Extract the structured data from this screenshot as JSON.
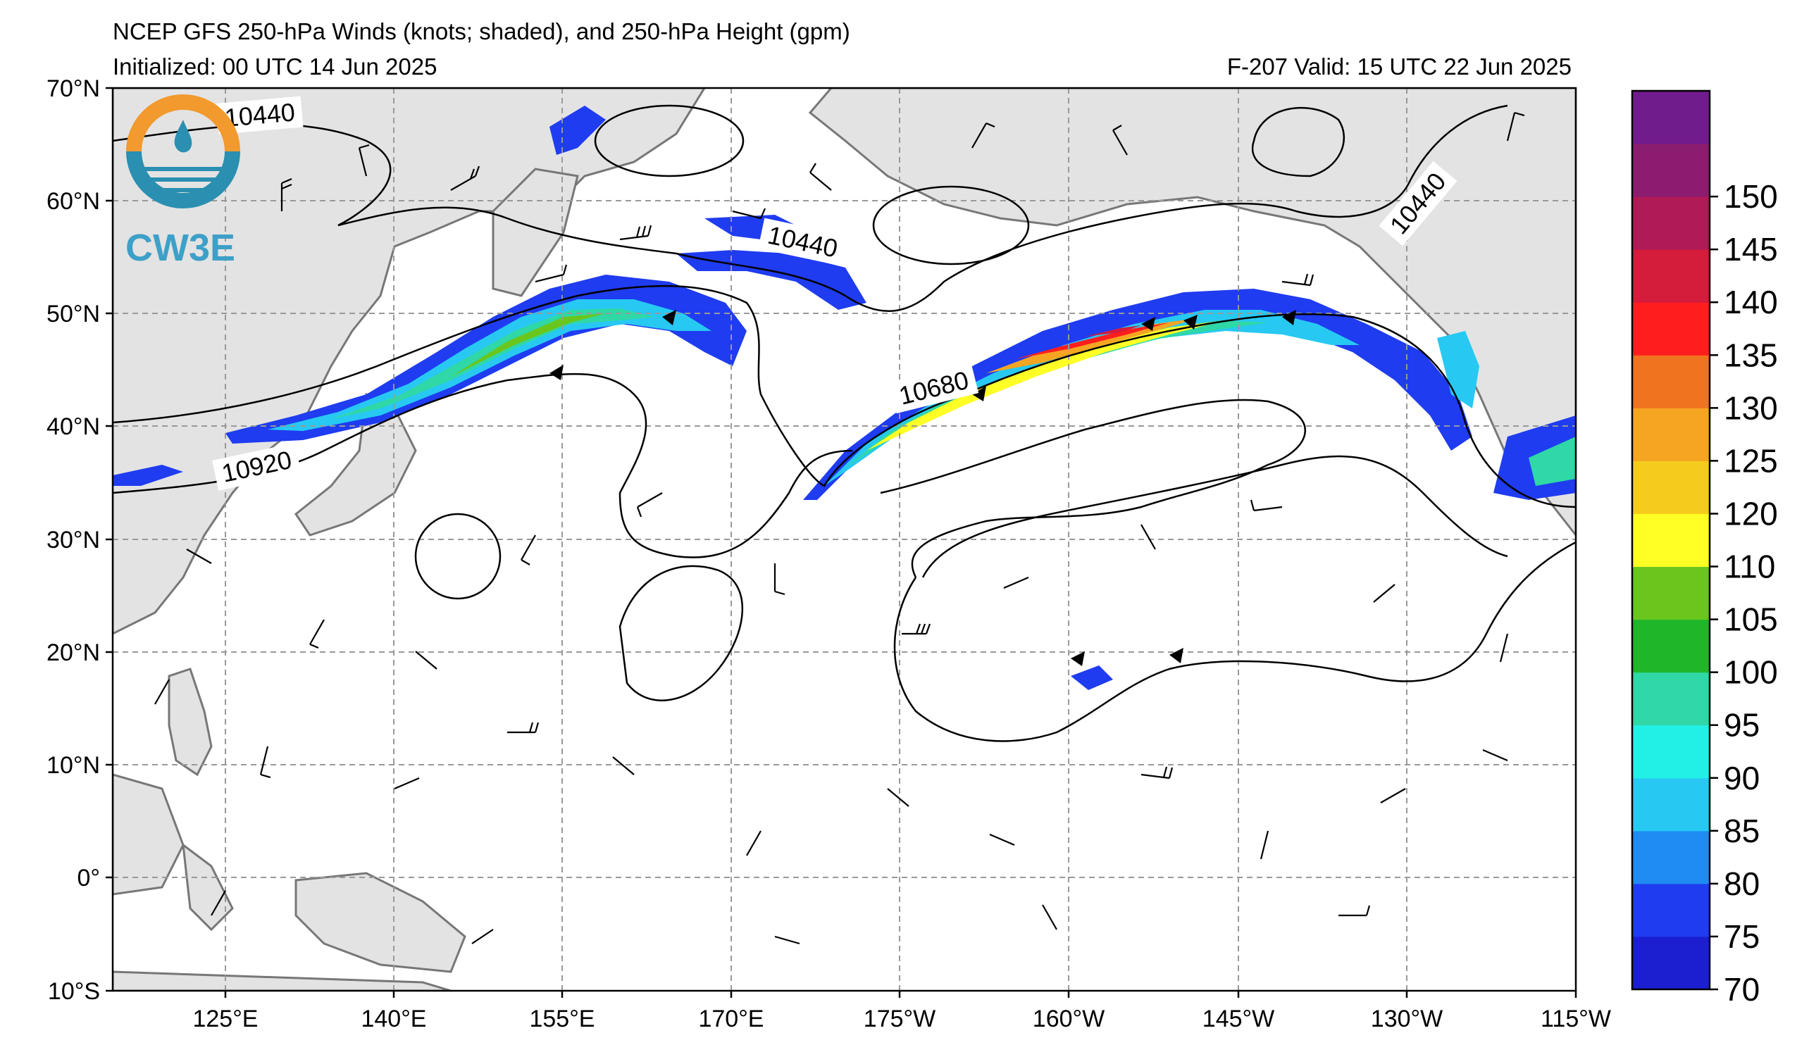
{
  "header": {
    "title": "NCEP GFS 250-hPa Winds (knots; shaded), and 250-hPa Height (gpm)",
    "initialized": "Initialized: 00 UTC 14 Jun 2025",
    "valid": "F-207  Valid: 15 UTC 22 Jun 2025"
  },
  "logo": {
    "text": "CW3E"
  },
  "map": {
    "lat_labels": [
      "70°N",
      "60°N",
      "50°N",
      "40°N",
      "30°N",
      "20°N",
      "10°N",
      "0°",
      "10°S"
    ],
    "lon_labels": [
      "125°E",
      "140°E",
      "155°E",
      "170°E",
      "175°W",
      "160°W",
      "145°W",
      "130°W",
      "115°W"
    ],
    "contour_labels": [
      "10440",
      "10440",
      "10440",
      "10680",
      "10920"
    ],
    "extent": {
      "lon_min": 115,
      "lon_max": 245,
      "lat_min": -10,
      "lat_max": 70
    }
  },
  "colorbar": {
    "labels": [
      "70",
      "75",
      "80",
      "85",
      "90",
      "95",
      "100",
      "105",
      "110",
      "120",
      "125",
      "130",
      "135",
      "140",
      "145",
      "150"
    ],
    "colors": [
      "#1c1fd0",
      "#1f3cf0",
      "#1e8cf2",
      "#27c9f2",
      "#22f0e6",
      "#2fd8a6",
      "#1fb62a",
      "#6ac61d",
      "#ffff26",
      "#f5cc1e",
      "#f5a521",
      "#f0731f",
      "#ff1e1e",
      "#d41c3b",
      "#b01a55",
      "#8c1c6e",
      "#711c8c"
    ]
  }
}
